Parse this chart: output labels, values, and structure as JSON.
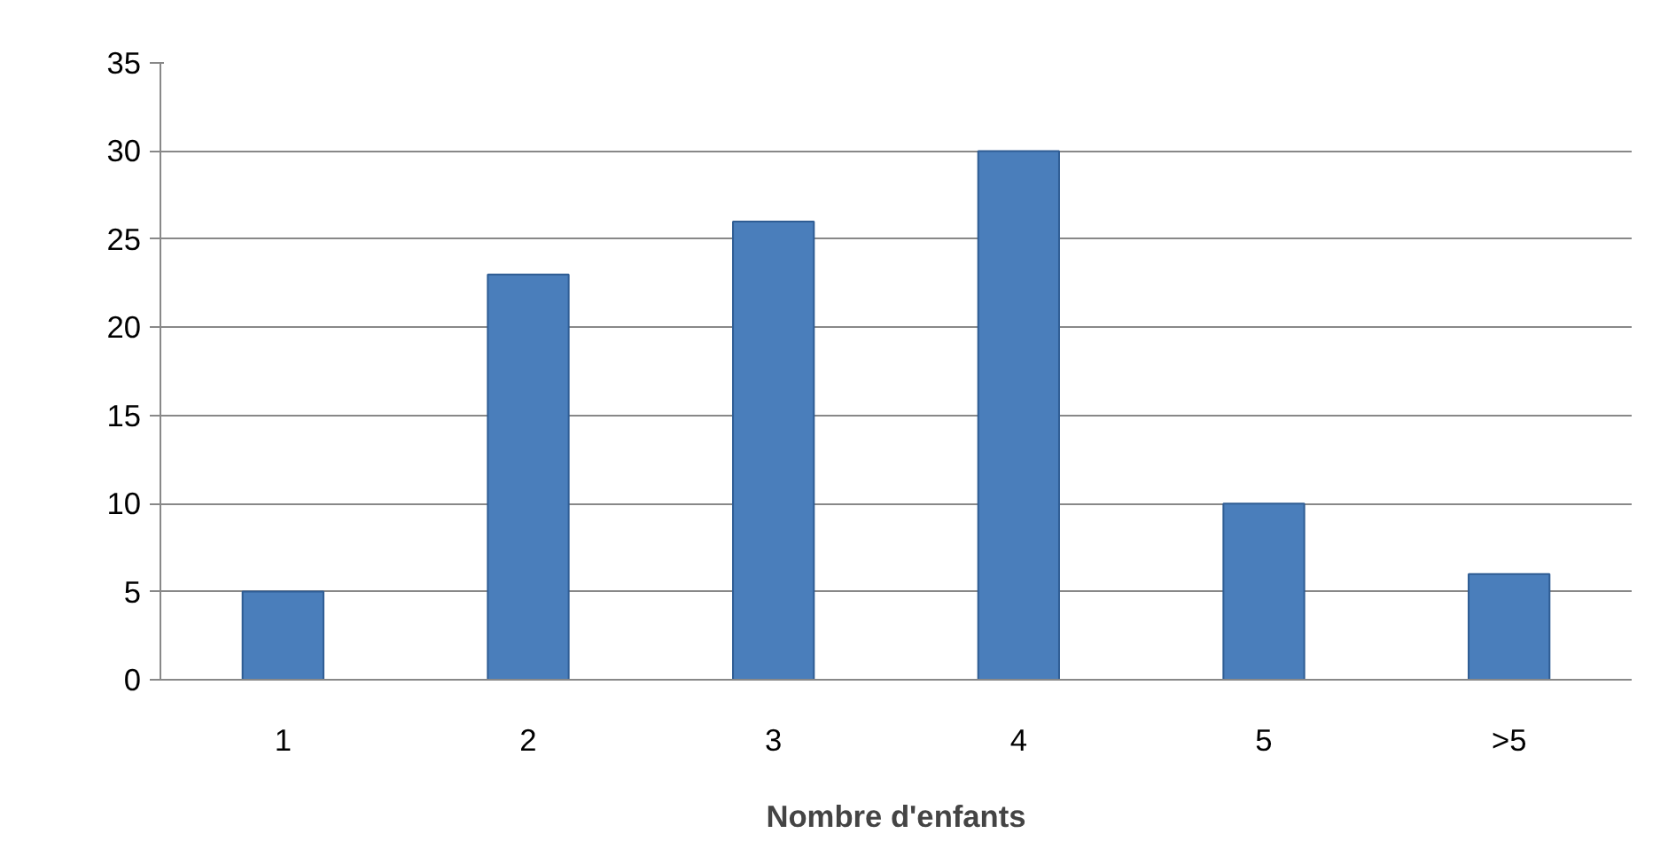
{
  "chart_data": {
    "type": "bar",
    "xlabel": "Nombre d'enfants",
    "categories": [
      "1",
      "2",
      "3",
      "4",
      "5",
      ">5"
    ],
    "values": [
      5,
      23,
      26,
      30,
      10,
      6
    ],
    "color": "#4a7ebb",
    "ylim": [
      0,
      35
    ],
    "yticks": [
      0,
      5,
      10,
      15,
      20,
      25,
      30,
      35
    ],
    "grid": "y"
  }
}
